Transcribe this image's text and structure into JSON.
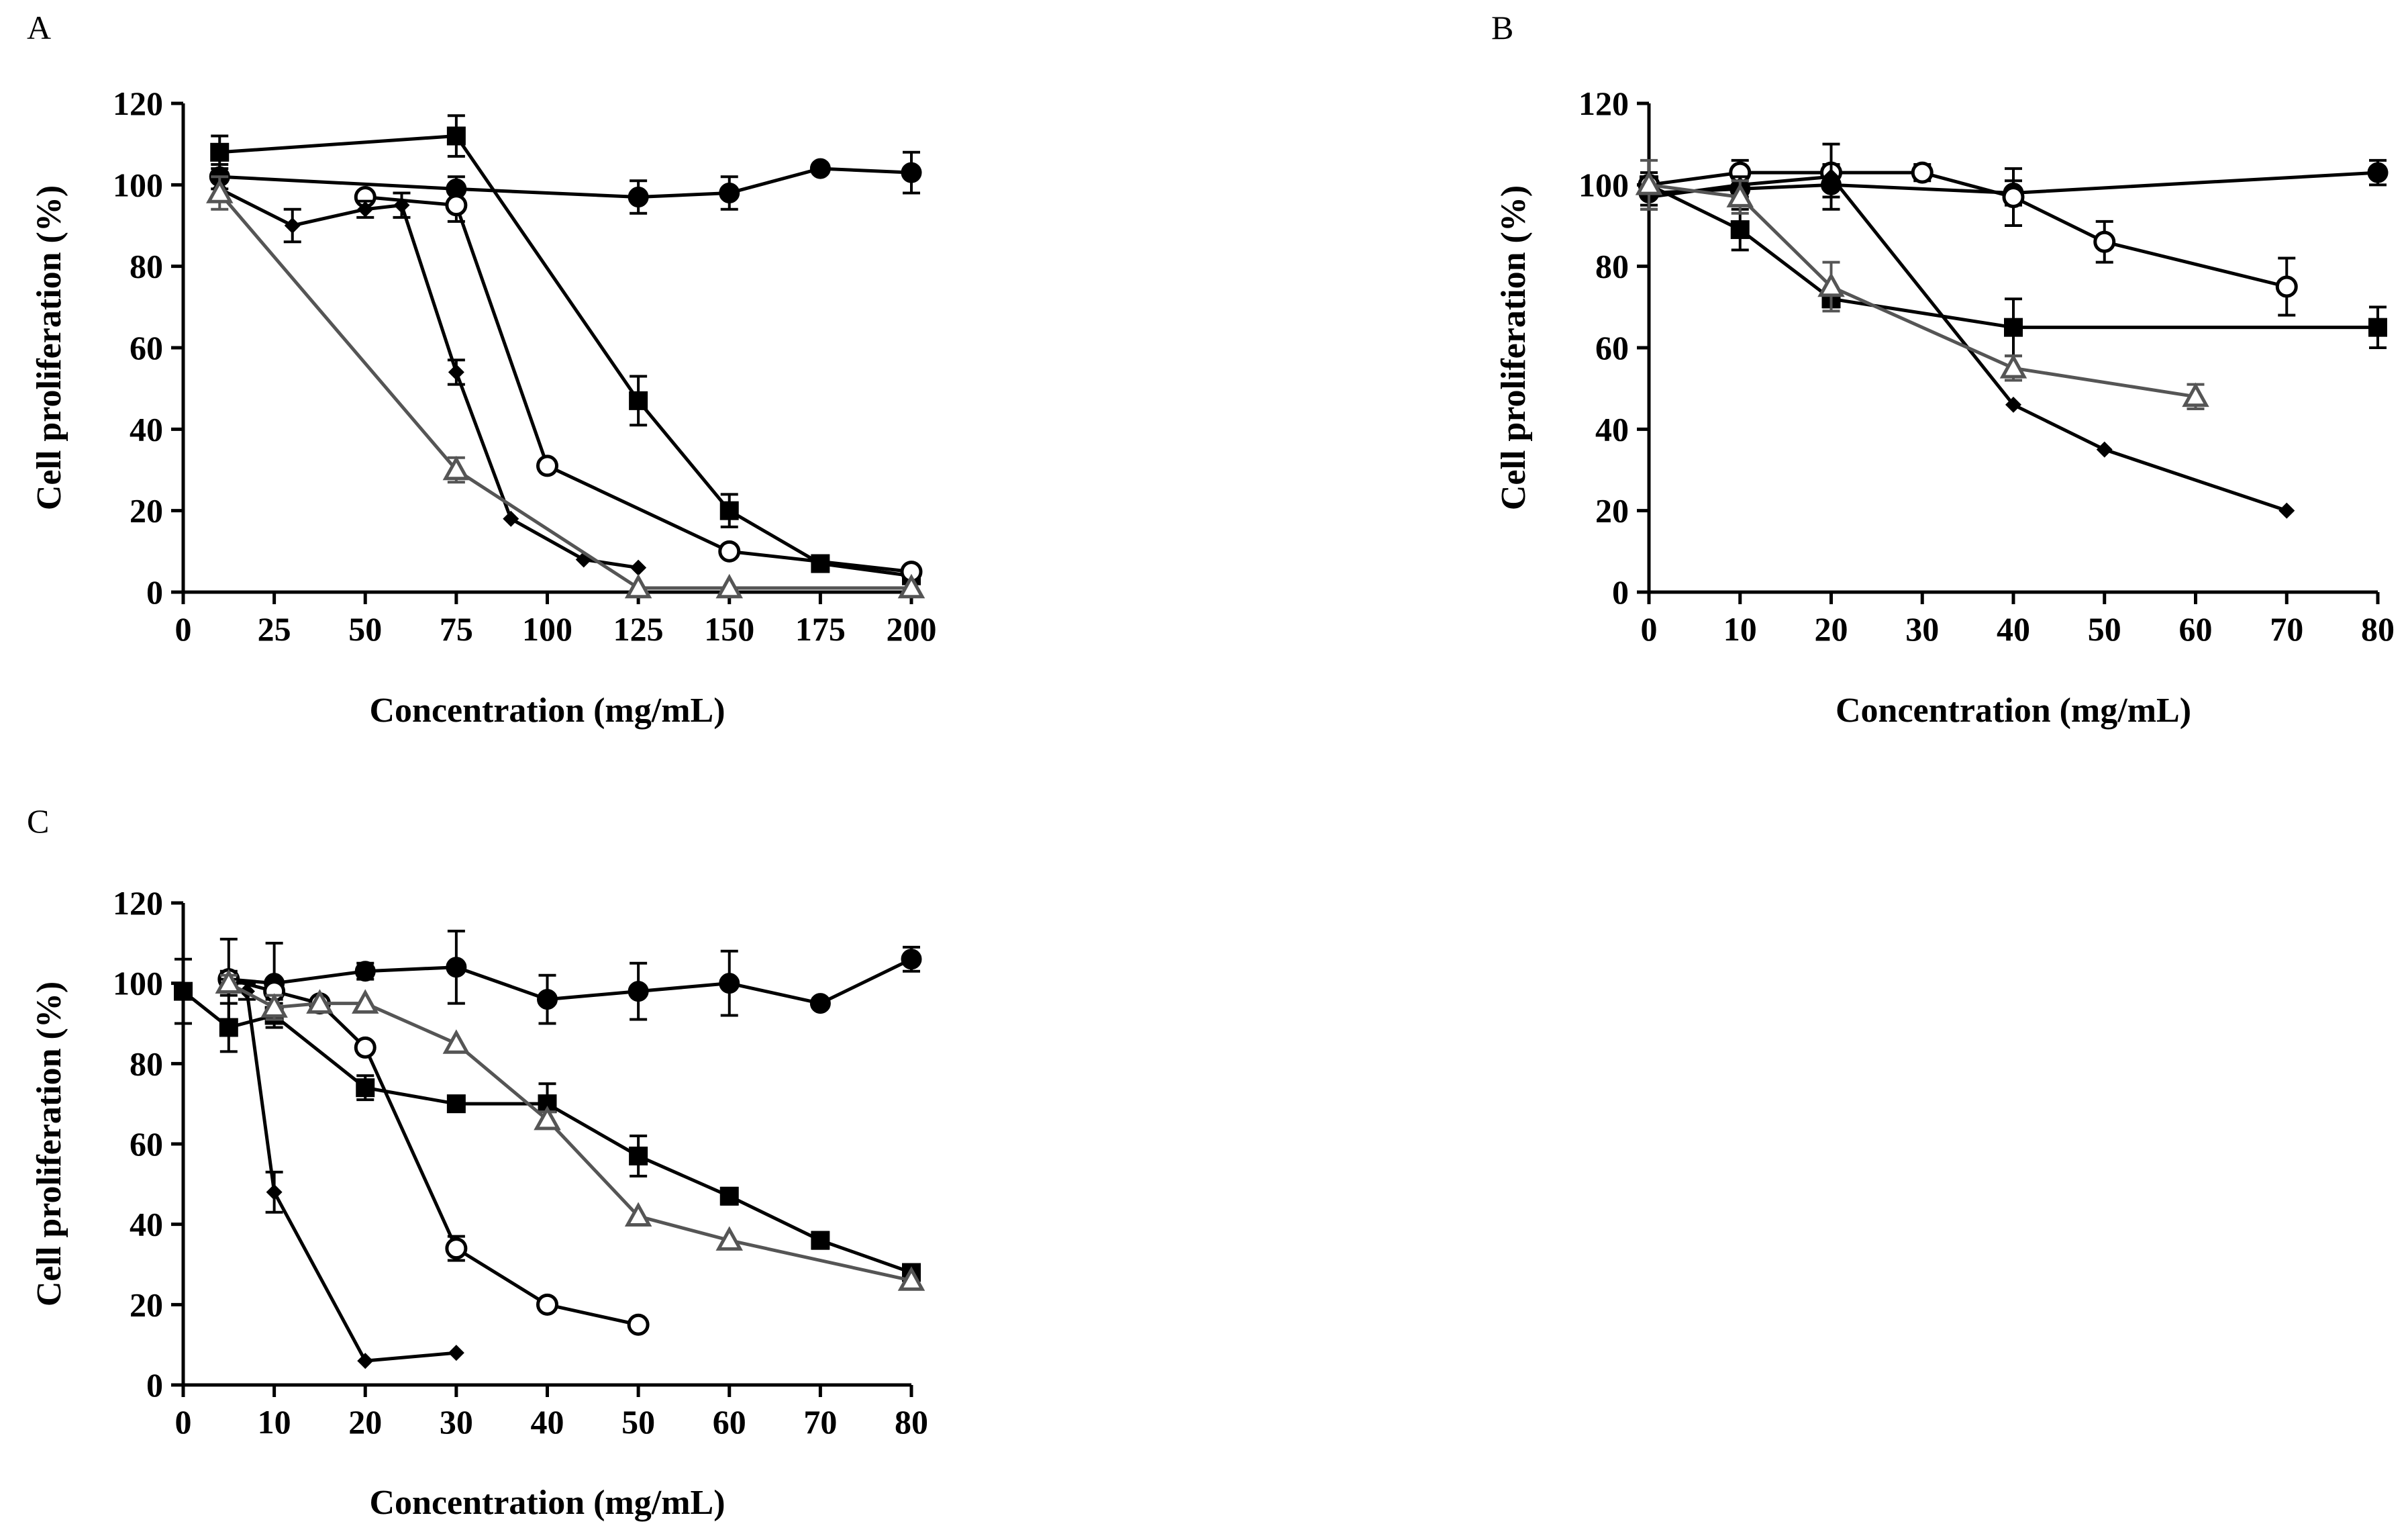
{
  "chart_data": [
    {
      "panel": "A",
      "type": "line",
      "xlabel": "Concentration (mg/mL)",
      "ylabel": "Cell proliferation (%)",
      "xlim": [
        0,
        200
      ],
      "ylim": [
        0,
        120
      ],
      "xticks": [
        0,
        25,
        50,
        75,
        100,
        125,
        150,
        175,
        200
      ],
      "yticks": [
        0,
        20,
        40,
        60,
        80,
        100,
        120
      ],
      "grid": false,
      "series": [
        {
          "marker": "circle-filled",
          "color": "#000000",
          "x": [
            10,
            75,
            125,
            150,
            175,
            200
          ],
          "y": [
            102,
            99,
            97,
            98,
            104,
            103
          ],
          "err": [
            3,
            3,
            4,
            4,
            1,
            5
          ]
        },
        {
          "marker": "square-filled",
          "color": "#000000",
          "x": [
            10,
            75,
            125,
            150,
            175,
            200
          ],
          "y": [
            108,
            112,
            47,
            20,
            7,
            4
          ],
          "err": [
            4,
            5,
            6,
            4,
            1,
            1
          ]
        },
        {
          "marker": "circle-open",
          "color": "#000000",
          "x": [
            50,
            75,
            100,
            150,
            200
          ],
          "y": [
            97,
            95,
            31,
            10,
            5
          ],
          "err": [
            1,
            4,
            1,
            1,
            1
          ]
        },
        {
          "marker": "diamond-filled",
          "color": "#000000",
          "x": [
            10,
            30,
            50,
            60,
            75,
            90,
            110,
            125
          ],
          "y": [
            99,
            90,
            94,
            95,
            54,
            18,
            8,
            6
          ],
          "err": [
            3,
            4,
            2,
            3,
            3,
            1,
            1,
            1
          ]
        },
        {
          "marker": "triangle-open",
          "color": "#555555",
          "x": [
            10,
            75,
            125,
            150,
            200
          ],
          "y": [
            98,
            30,
            1,
            1,
            1
          ],
          "err": [
            4,
            3,
            1,
            1,
            1
          ]
        }
      ]
    },
    {
      "panel": "B",
      "type": "line",
      "xlabel": "Concentration (mg/mL)",
      "ylabel": "Cell proliferation (%)",
      "xlim": [
        0,
        80
      ],
      "ylim": [
        0,
        120
      ],
      "xticks": [
        0,
        10,
        20,
        30,
        40,
        50,
        60,
        70,
        80
      ],
      "yticks": [
        0,
        20,
        40,
        60,
        80,
        100,
        120
      ],
      "grid": false,
      "series": [
        {
          "marker": "circle-filled",
          "color": "#000000",
          "x": [
            0,
            10,
            20,
            40,
            80
          ],
          "y": [
            98,
            99,
            100,
            98,
            103
          ],
          "err": [
            3,
            2,
            3,
            3,
            3
          ]
        },
        {
          "marker": "square-filled",
          "color": "#000000",
          "x": [
            0,
            10,
            20,
            40,
            80
          ],
          "y": [
            100,
            89,
            72,
            65,
            65
          ],
          "err": [
            3,
            5,
            2,
            7,
            5
          ]
        },
        {
          "marker": "circle-open",
          "color": "#000000",
          "x": [
            0,
            10,
            20,
            30,
            40,
            50,
            70
          ],
          "y": [
            100,
            103,
            103,
            103,
            97,
            86,
            75
          ],
          "err": [
            2,
            3,
            2,
            2,
            7,
            5,
            7
          ]
        },
        {
          "marker": "diamond-filled",
          "color": "#000000",
          "x": [
            0,
            10,
            20,
            40,
            50,
            70
          ],
          "y": [
            97,
            100,
            102,
            46,
            35,
            20
          ],
          "err": [
            3,
            2,
            8,
            1,
            1,
            1
          ]
        },
        {
          "marker": "triangle-open",
          "color": "#555555",
          "x": [
            0,
            10,
            20,
            40,
            60
          ],
          "y": [
            100,
            97,
            75,
            55,
            48
          ],
          "err": [
            6,
            4,
            6,
            3,
            3
          ]
        }
      ]
    },
    {
      "panel": "C",
      "type": "line",
      "xlabel": "Concentration (mg/mL)",
      "ylabel": "Cell proliferation (%)",
      "xlim": [
        0,
        80
      ],
      "ylim": [
        0,
        120
      ],
      "xticks": [
        0,
        10,
        20,
        30,
        40,
        50,
        60,
        70,
        80
      ],
      "yticks": [
        0,
        20,
        40,
        60,
        80,
        100,
        120
      ],
      "grid": false,
      "series": [
        {
          "marker": "circle-filled",
          "color": "#000000",
          "x": [
            5,
            10,
            20,
            30,
            40,
            50,
            60,
            70,
            80
          ],
          "y": [
            101,
            100,
            103,
            104,
            96,
            98,
            100,
            95,
            106
          ],
          "err": [
            10,
            10,
            2,
            9,
            6,
            7,
            8,
            1,
            3
          ]
        },
        {
          "marker": "square-filled",
          "color": "#000000",
          "x": [
            0,
            5,
            10,
            20,
            30,
            40,
            50,
            60,
            70,
            80
          ],
          "y": [
            98,
            89,
            92,
            74,
            70,
            70,
            57,
            47,
            36,
            28
          ],
          "err": [
            8,
            6,
            3,
            3,
            1,
            5,
            5,
            2,
            2,
            1
          ]
        },
        {
          "marker": "circle-open",
          "color": "#000000",
          "x": [
            5,
            10,
            15,
            20,
            30,
            40,
            50
          ],
          "y": [
            101,
            98,
            95,
            84,
            34,
            20,
            15
          ],
          "err": [
            2,
            2,
            1,
            1,
            3,
            1,
            1
          ]
        },
        {
          "marker": "diamond-filled",
          "color": "#000000",
          "x": [
            5,
            7,
            10,
            20,
            30
          ],
          "y": [
            99,
            98,
            48,
            6,
            8
          ],
          "err": [
            2,
            2,
            5,
            1,
            1
          ]
        },
        {
          "marker": "triangle-open",
          "color": "#555555",
          "x": [
            5,
            10,
            15,
            20,
            30,
            40,
            50,
            60,
            80
          ],
          "y": [
            100,
            94,
            95,
            95,
            85,
            66,
            42,
            36,
            26
          ],
          "err": [
            2,
            3,
            1,
            1,
            1,
            2,
            1,
            1,
            1
          ]
        }
      ]
    }
  ]
}
